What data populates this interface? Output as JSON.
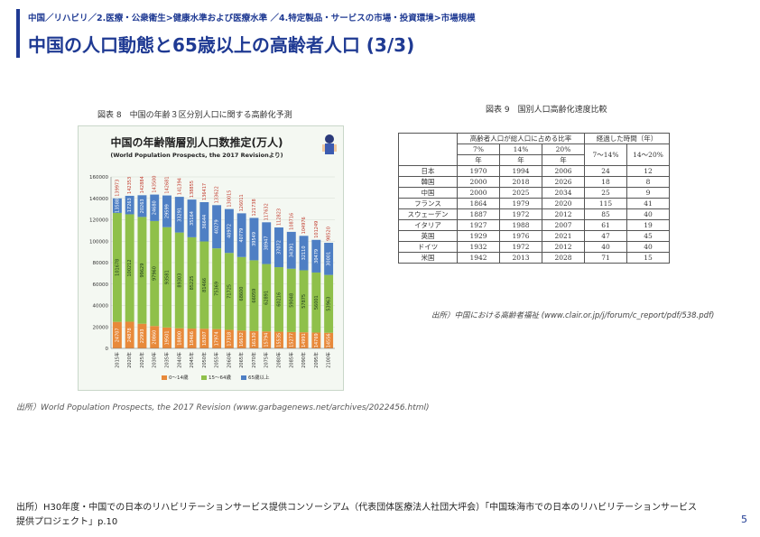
{
  "header": {
    "breadcrumb": "中国／リハビリ／2.医療・公衆衛生>健康水準および医療水準 ／4.特定製品・サービスの市場・投資環境>市場規模",
    "title": "中国の人口動態と65歳以上の高齢者人口 (3/3)"
  },
  "figure_left": {
    "caption": "図表 8　中国の年齢３区分別人口に関する高齢化予測",
    "source": "出所）World Population Prospects, the 2017 Revision (www.garbagenews.net/archives/2022456.html)"
  },
  "figure_right": {
    "caption": "図表 9　国別人口高齢化速度比較",
    "source": "出所）中国における高齢者福祉 (www.clair.or.jp/j/forum/c_report/pdf/538.pdf)",
    "table": {
      "header_row1": [
        "",
        "高齢者人口が総人口に占める比率",
        "経過した時間（年）"
      ],
      "header_row2": [
        "",
        "7%",
        "14%",
        "20%",
        "7〜14%",
        "14〜20%"
      ],
      "header_row3": [
        "",
        "年",
        "年",
        "年",
        "",
        ""
      ],
      "rows": [
        [
          "日本",
          "1970",
          "1994",
          "2006",
          "24",
          "12"
        ],
        [
          "韓国",
          "2000",
          "2018",
          "2026",
          "18",
          "8"
        ],
        [
          "中国",
          "2000",
          "2025",
          "2034",
          "25",
          "9"
        ],
        [
          "フランス",
          "1864",
          "1979",
          "2020",
          "115",
          "41"
        ],
        [
          "スウェーデン",
          "1887",
          "1972",
          "2012",
          "85",
          "40"
        ],
        [
          "イタリア",
          "1927",
          "1988",
          "2007",
          "61",
          "19"
        ],
        [
          "英国",
          "1929",
          "1976",
          "2021",
          "47",
          "45"
        ],
        [
          "ドイツ",
          "1932",
          "1972",
          "2012",
          "40",
          "40"
        ],
        [
          "米国",
          "1942",
          "2013",
          "2028",
          "71",
          "15"
        ]
      ]
    }
  },
  "chart_data": {
    "type": "bar",
    "title": "中国の年齢階層別人口数推定(万人)",
    "subtitle": "(World Population Prospects, the 2017 Revisionより)",
    "categories": [
      "2015年",
      "2020年",
      "2025年",
      "2030年",
      "2035年",
      "2040年",
      "2045年",
      "2050年",
      "2055年",
      "2060年",
      "2065年",
      "2070年",
      "2075年",
      "2080年",
      "2085年",
      "2090年",
      "2095年",
      "2100年"
    ],
    "series": [
      {
        "name": "0〜14歳",
        "values": [
          24707,
          24878,
          22993,
          20860,
          19501,
          18800,
          18466,
          18307,
          17974,
          17318,
          16632,
          16130,
          15794,
          15535,
          15277,
          14991,
          14769,
          14556
        ]
      },
      {
        "name": "15〜64歳",
        "values": [
          101678,
          100212,
          99629,
          97960,
          93581,
          89303,
          85225,
          81466,
          75369,
          71725,
          68600,
          66059,
          62891,
          60216,
          59048,
          57875,
          56001,
          53963
        ]
      },
      {
        "name": "65歳以上",
        "values": [
          13588,
          17263,
          20263,
          24680,
          29599,
          33291,
          35164,
          36644,
          40279,
          40972,
          40779,
          39549,
          38947,
          37072,
          34391,
          32110,
          30479,
          30001
        ]
      }
    ],
    "totals": [
      139973,
      142353,
      142884,
      143500,
      142681,
      141394,
      138855,
      136417,
      133622,
      130015,
      126011,
      121738,
      117632,
      112823,
      108716,
      104976,
      101249,
      98520
    ],
    "y_ticks": [
      "0",
      "20000",
      "40000",
      "60000",
      "80000",
      "100000",
      "120000",
      "140000",
      "160000"
    ],
    "ylim": [
      0,
      160000
    ],
    "legend": [
      "0〜14歳",
      "15〜64歳",
      "65歳以上"
    ],
    "colors": {
      "young": "#e8893a",
      "working": "#8fc04a",
      "old": "#4e7fc4",
      "total_label": "#c0392b"
    }
  },
  "footer": {
    "source": "出所）H30年度・中国での日本のリハビリテーションサービス提供コンソーシアム（代表団体医療法人社団大坪会）「中国珠海市での日本のリハビリテーションサービス提供プロジェクト」p.10",
    "page": "5"
  }
}
